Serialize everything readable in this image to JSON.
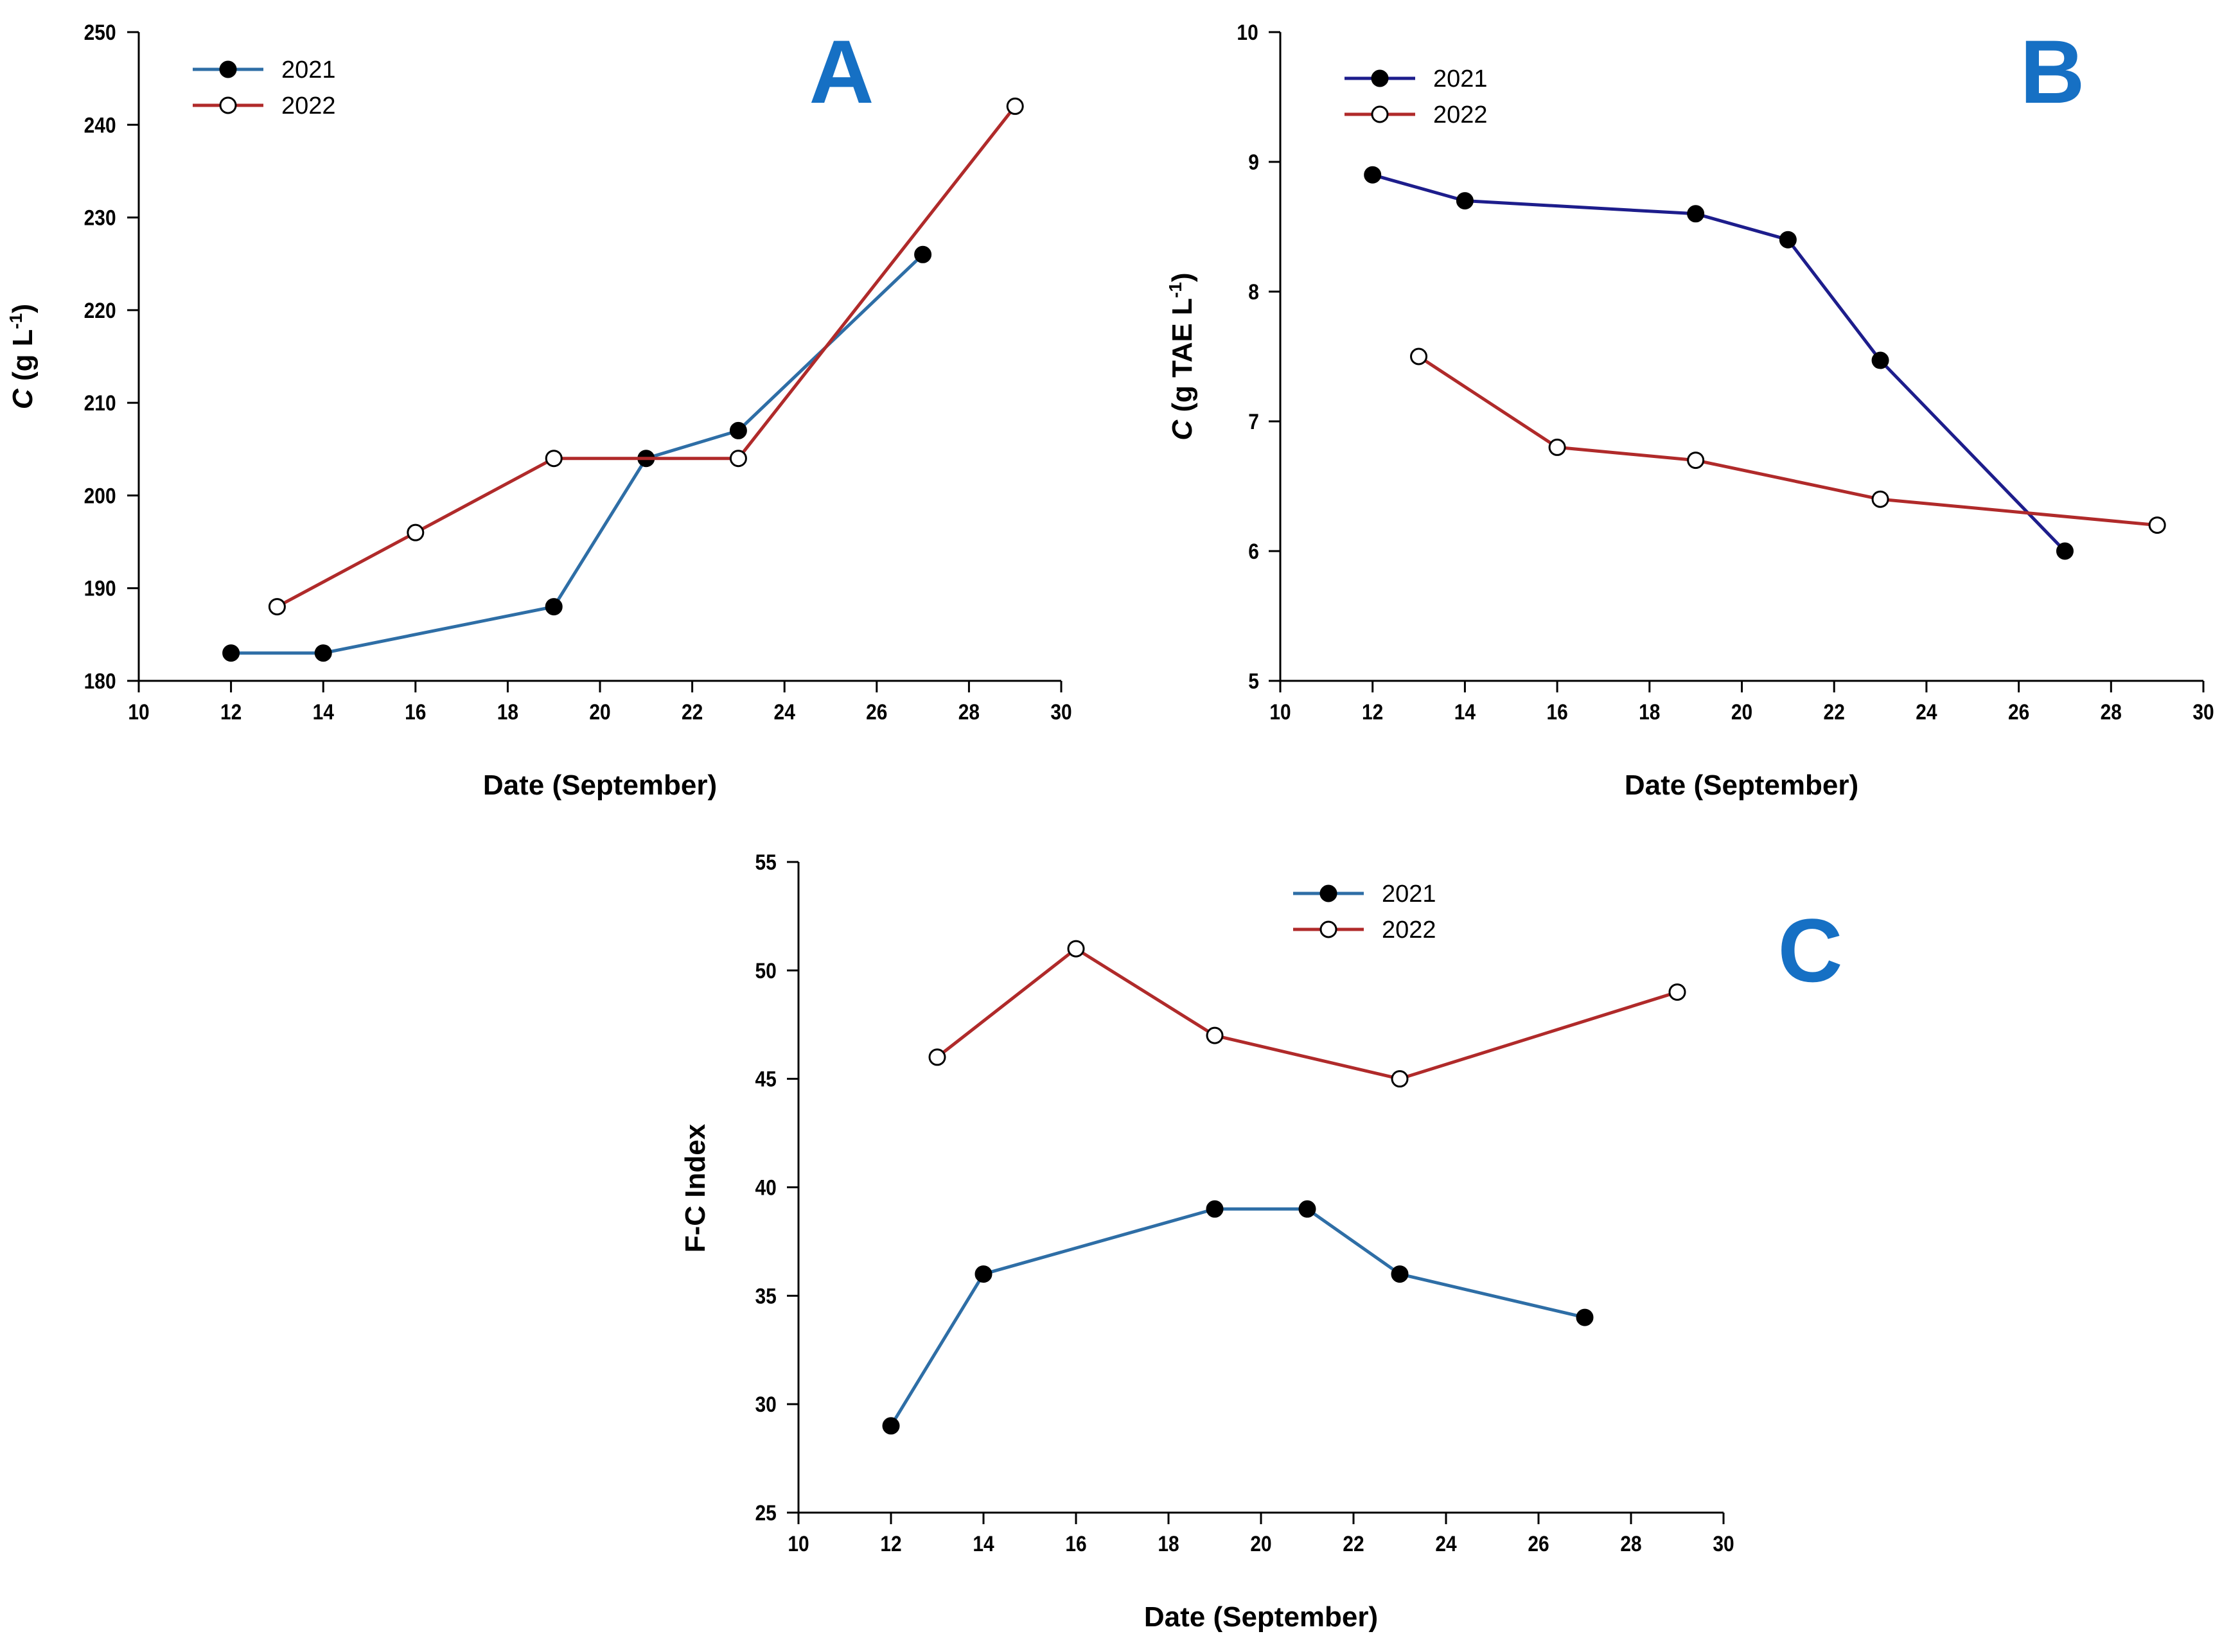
{
  "colors": {
    "series_2021_AC": "#2e6ea6",
    "series_2021_B": "#1d1d8c",
    "series_2022": "#b02a2a",
    "letter": "#1670c4"
  },
  "chart_data": [
    {
      "panel": "A",
      "type": "line",
      "xlabel": "Date (September)",
      "ylabel_italic": "C",
      "ylabel_rest": " (g L",
      "ylabel_sup": "-1",
      "ylabel_close": ")",
      "xlim": [
        10,
        30
      ],
      "ylim": [
        180,
        250
      ],
      "xticks": [
        10,
        12,
        14,
        16,
        18,
        20,
        22,
        24,
        26,
        28,
        30
      ],
      "yticks": [
        180,
        190,
        200,
        210,
        220,
        230,
        240,
        250
      ],
      "legend": "top-left",
      "series": [
        {
          "name": "2021",
          "marker": "filled",
          "x": [
            12,
            14,
            19,
            21,
            23,
            27
          ],
          "y": [
            183,
            183,
            188,
            204,
            207,
            226
          ]
        },
        {
          "name": "2022",
          "marker": "open",
          "x": [
            13,
            16,
            19,
            23,
            29
          ],
          "y": [
            188,
            196,
            204,
            204,
            242
          ]
        }
      ]
    },
    {
      "panel": "B",
      "type": "line",
      "xlabel": "Date (September)",
      "ylabel_italic": "C",
      "ylabel_rest": " (g TAE L",
      "ylabel_sup": "-1",
      "ylabel_close": ")",
      "xlim": [
        10,
        30
      ],
      "ylim": [
        5,
        10
      ],
      "xticks": [
        10,
        12,
        14,
        16,
        18,
        20,
        22,
        24,
        26,
        28,
        30
      ],
      "yticks": [
        5,
        6,
        7,
        8,
        9,
        10
      ],
      "legend": "top-left",
      "series": [
        {
          "name": "2021",
          "marker": "filled",
          "x": [
            12,
            14,
            19,
            21,
            23,
            27
          ],
          "y": [
            8.9,
            8.7,
            8.6,
            8.4,
            7.47,
            6.0
          ]
        },
        {
          "name": "2022",
          "marker": "open",
          "x": [
            13,
            16,
            19,
            23,
            29
          ],
          "y": [
            7.5,
            6.8,
            6.7,
            6.4,
            6.2
          ]
        }
      ]
    },
    {
      "panel": "C",
      "type": "line",
      "xlabel": "Date (September)",
      "ylabel_italic": "",
      "ylabel_rest": "F-C Index",
      "ylabel_sup": "",
      "ylabel_close": "",
      "xlim": [
        10,
        30
      ],
      "ylim": [
        25,
        55
      ],
      "xticks": [
        10,
        12,
        14,
        16,
        18,
        20,
        22,
        24,
        26,
        28,
        30
      ],
      "yticks": [
        25,
        30,
        35,
        40,
        45,
        50,
        55
      ],
      "legend": "top-center",
      "series": [
        {
          "name": "2021",
          "marker": "filled",
          "x": [
            12,
            14,
            19,
            21,
            23,
            27
          ],
          "y": [
            29,
            36,
            39,
            39,
            36,
            34
          ]
        },
        {
          "name": "2022",
          "marker": "open",
          "x": [
            13,
            16,
            19,
            23,
            29
          ],
          "y": [
            46,
            51,
            47,
            45,
            49
          ]
        }
      ]
    }
  ]
}
